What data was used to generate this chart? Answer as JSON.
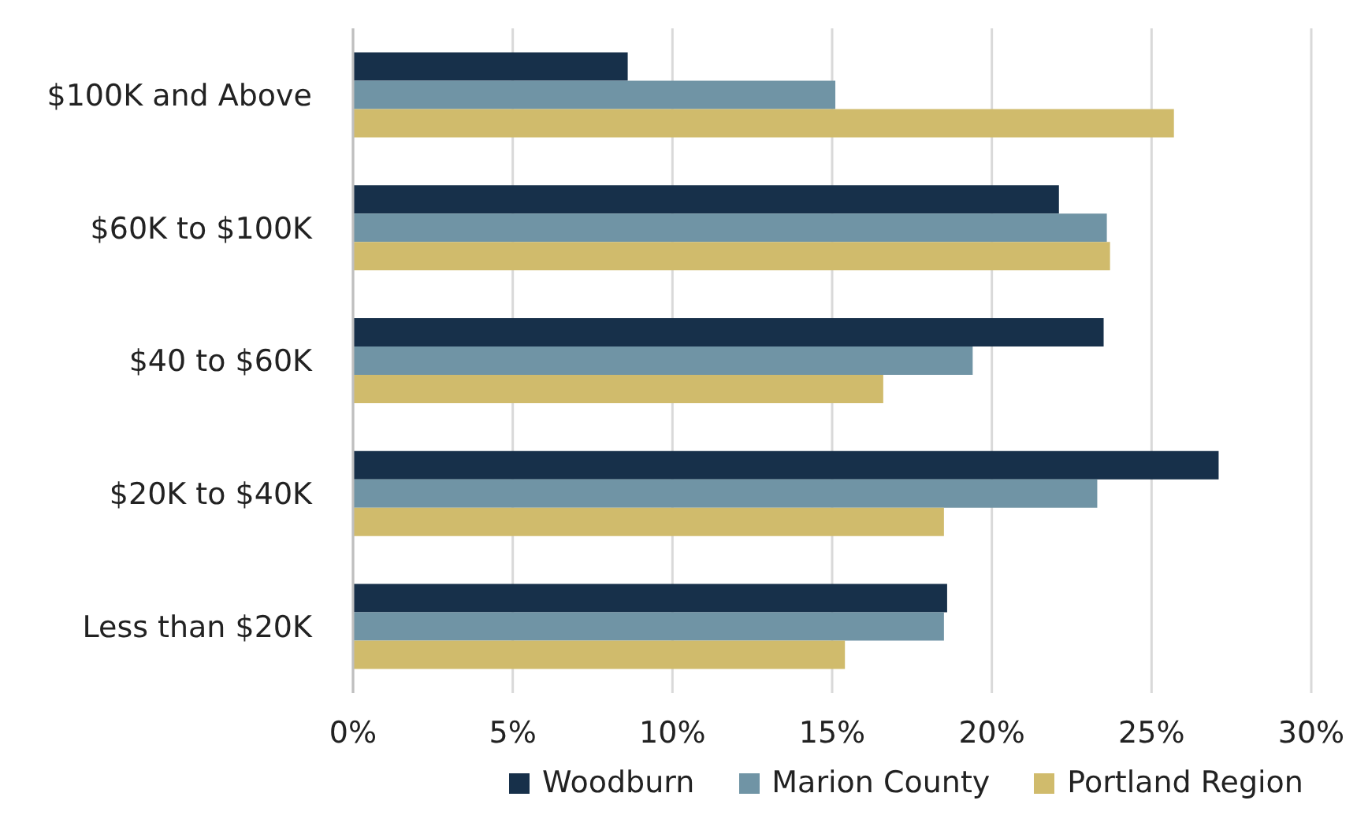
{
  "chart_data": {
    "type": "bar",
    "orientation": "horizontal",
    "categories": [
      "$100K and Above",
      "$60K to $100K",
      "$40 to $60K",
      "$20K to $40K",
      "Less than $20K"
    ],
    "series": [
      {
        "name": "Woodburn",
        "color": "#17304a",
        "values": [
          8.6,
          22.1,
          23.5,
          27.1,
          18.6
        ]
      },
      {
        "name": "Marion County",
        "color": "#7094a5",
        "values": [
          15.1,
          23.6,
          19.4,
          23.3,
          18.5
        ]
      },
      {
        "name": "Portland Region",
        "color": "#d0bb6c",
        "values": [
          25.7,
          23.7,
          16.6,
          18.5,
          15.4
        ]
      }
    ],
    "xlim": [
      0,
      30
    ],
    "xticks": [
      {
        "value": 0,
        "label": "0%"
      },
      {
        "value": 5,
        "label": "5%"
      },
      {
        "value": 10,
        "label": "10%"
      },
      {
        "value": 15,
        "label": "15%"
      },
      {
        "value": 20,
        "label": "20%"
      },
      {
        "value": 25,
        "label": "25%"
      },
      {
        "value": 30,
        "label": "30%"
      }
    ],
    "grid": "x",
    "legend": "bottom"
  }
}
